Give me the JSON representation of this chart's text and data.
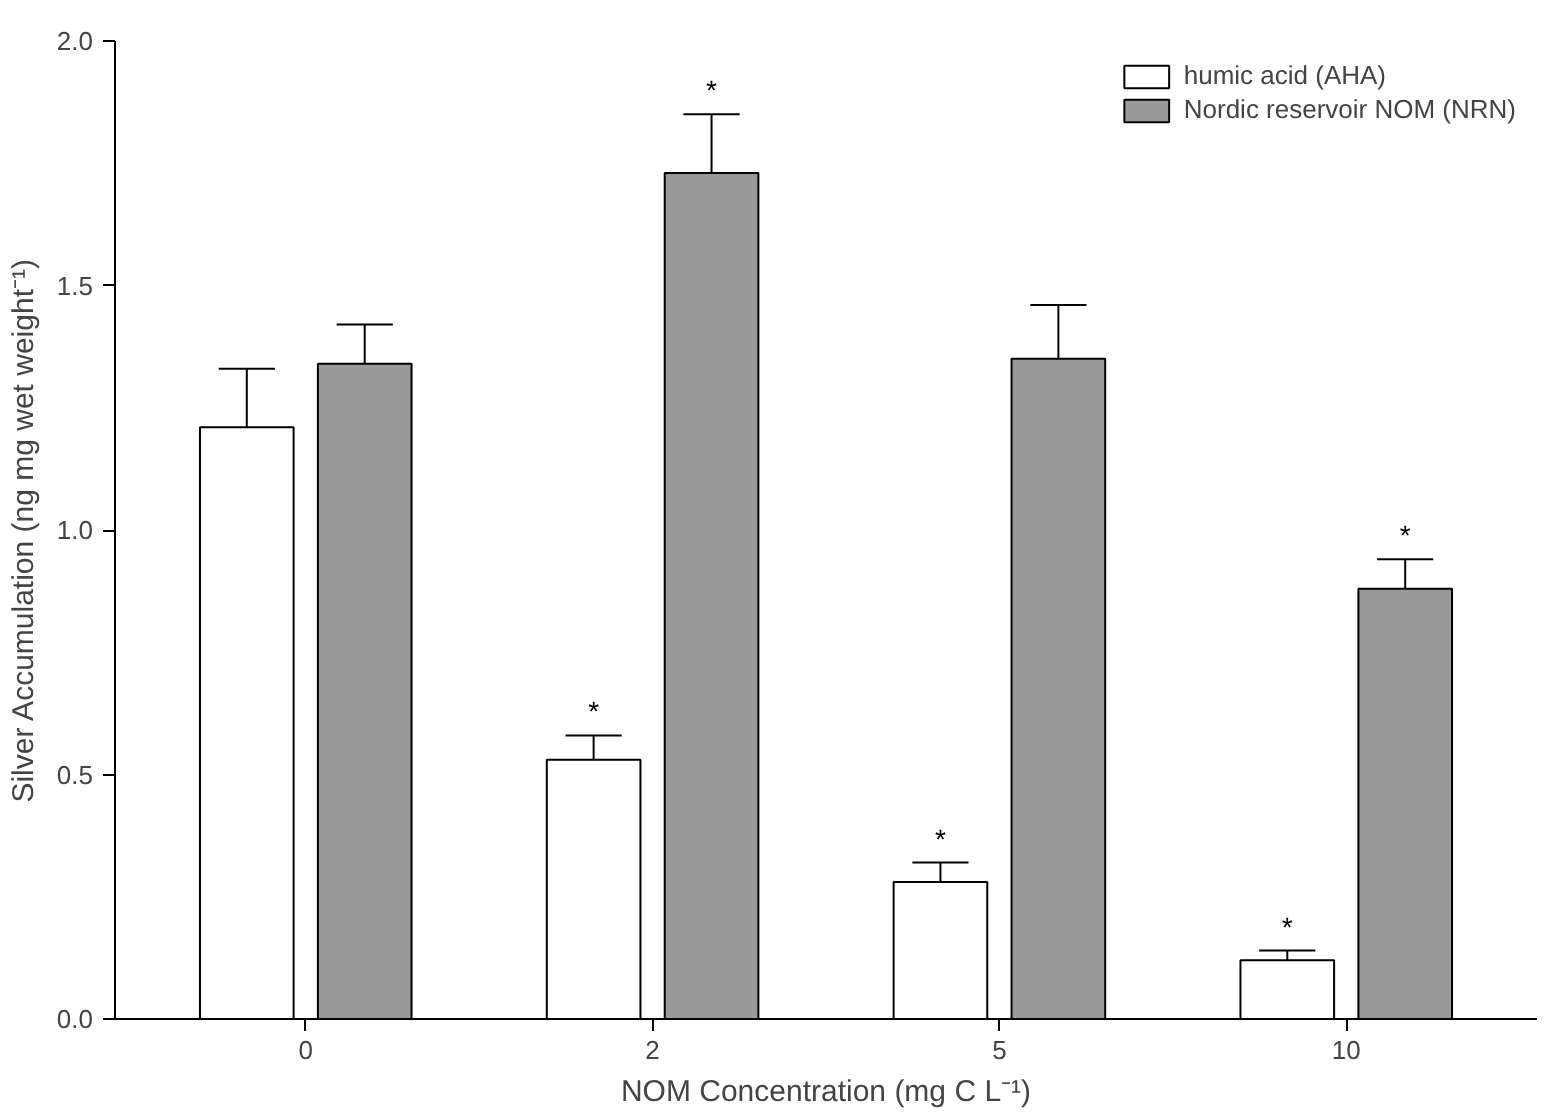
{
  "chart_data": {
    "type": "bar",
    "xlabel": "NOM Concentration (mg C L⁻¹)",
    "ylabel": "Silver Accumulation (ng mg wet weight⁻¹)",
    "categories": [
      "0",
      "2",
      "5",
      "10"
    ],
    "series": [
      {
        "name": "humic acid (AHA)",
        "color": "#ffffff",
        "values": [
          1.21,
          0.53,
          0.28,
          0.12
        ],
        "errors": [
          [
            1.21,
            1.33
          ],
          [
            0.53,
            0.58
          ],
          [
            0.28,
            0.32
          ],
          [
            0.12,
            0.14
          ]
        ],
        "value_labels": [
          null,
          "*",
          "*",
          "*"
        ]
      },
      {
        "name": "Nordic reservoir NOM (NRN)",
        "color": "#999999",
        "values": [
          1.34,
          1.73,
          1.35,
          0.88
        ],
        "errors": [
          [
            1.34,
            1.42
          ],
          [
            1.73,
            1.85
          ],
          [
            1.35,
            1.46
          ],
          [
            0.88,
            0.94
          ]
        ],
        "value_labels": [
          null,
          "*",
          null,
          "*"
        ]
      }
    ],
    "ylim": [
      0,
      2.0
    ],
    "yticks": [
      {
        "value": 0,
        "label": "0.0"
      },
      {
        "value": 0.5,
        "label": "0.5"
      },
      {
        "value": 1.0,
        "label": "1.0"
      },
      {
        "value": 1.5,
        "label": "1.5"
      },
      {
        "value": 2.0,
        "label": "2.0"
      }
    ],
    "grid": false,
    "legend": "top right"
  }
}
